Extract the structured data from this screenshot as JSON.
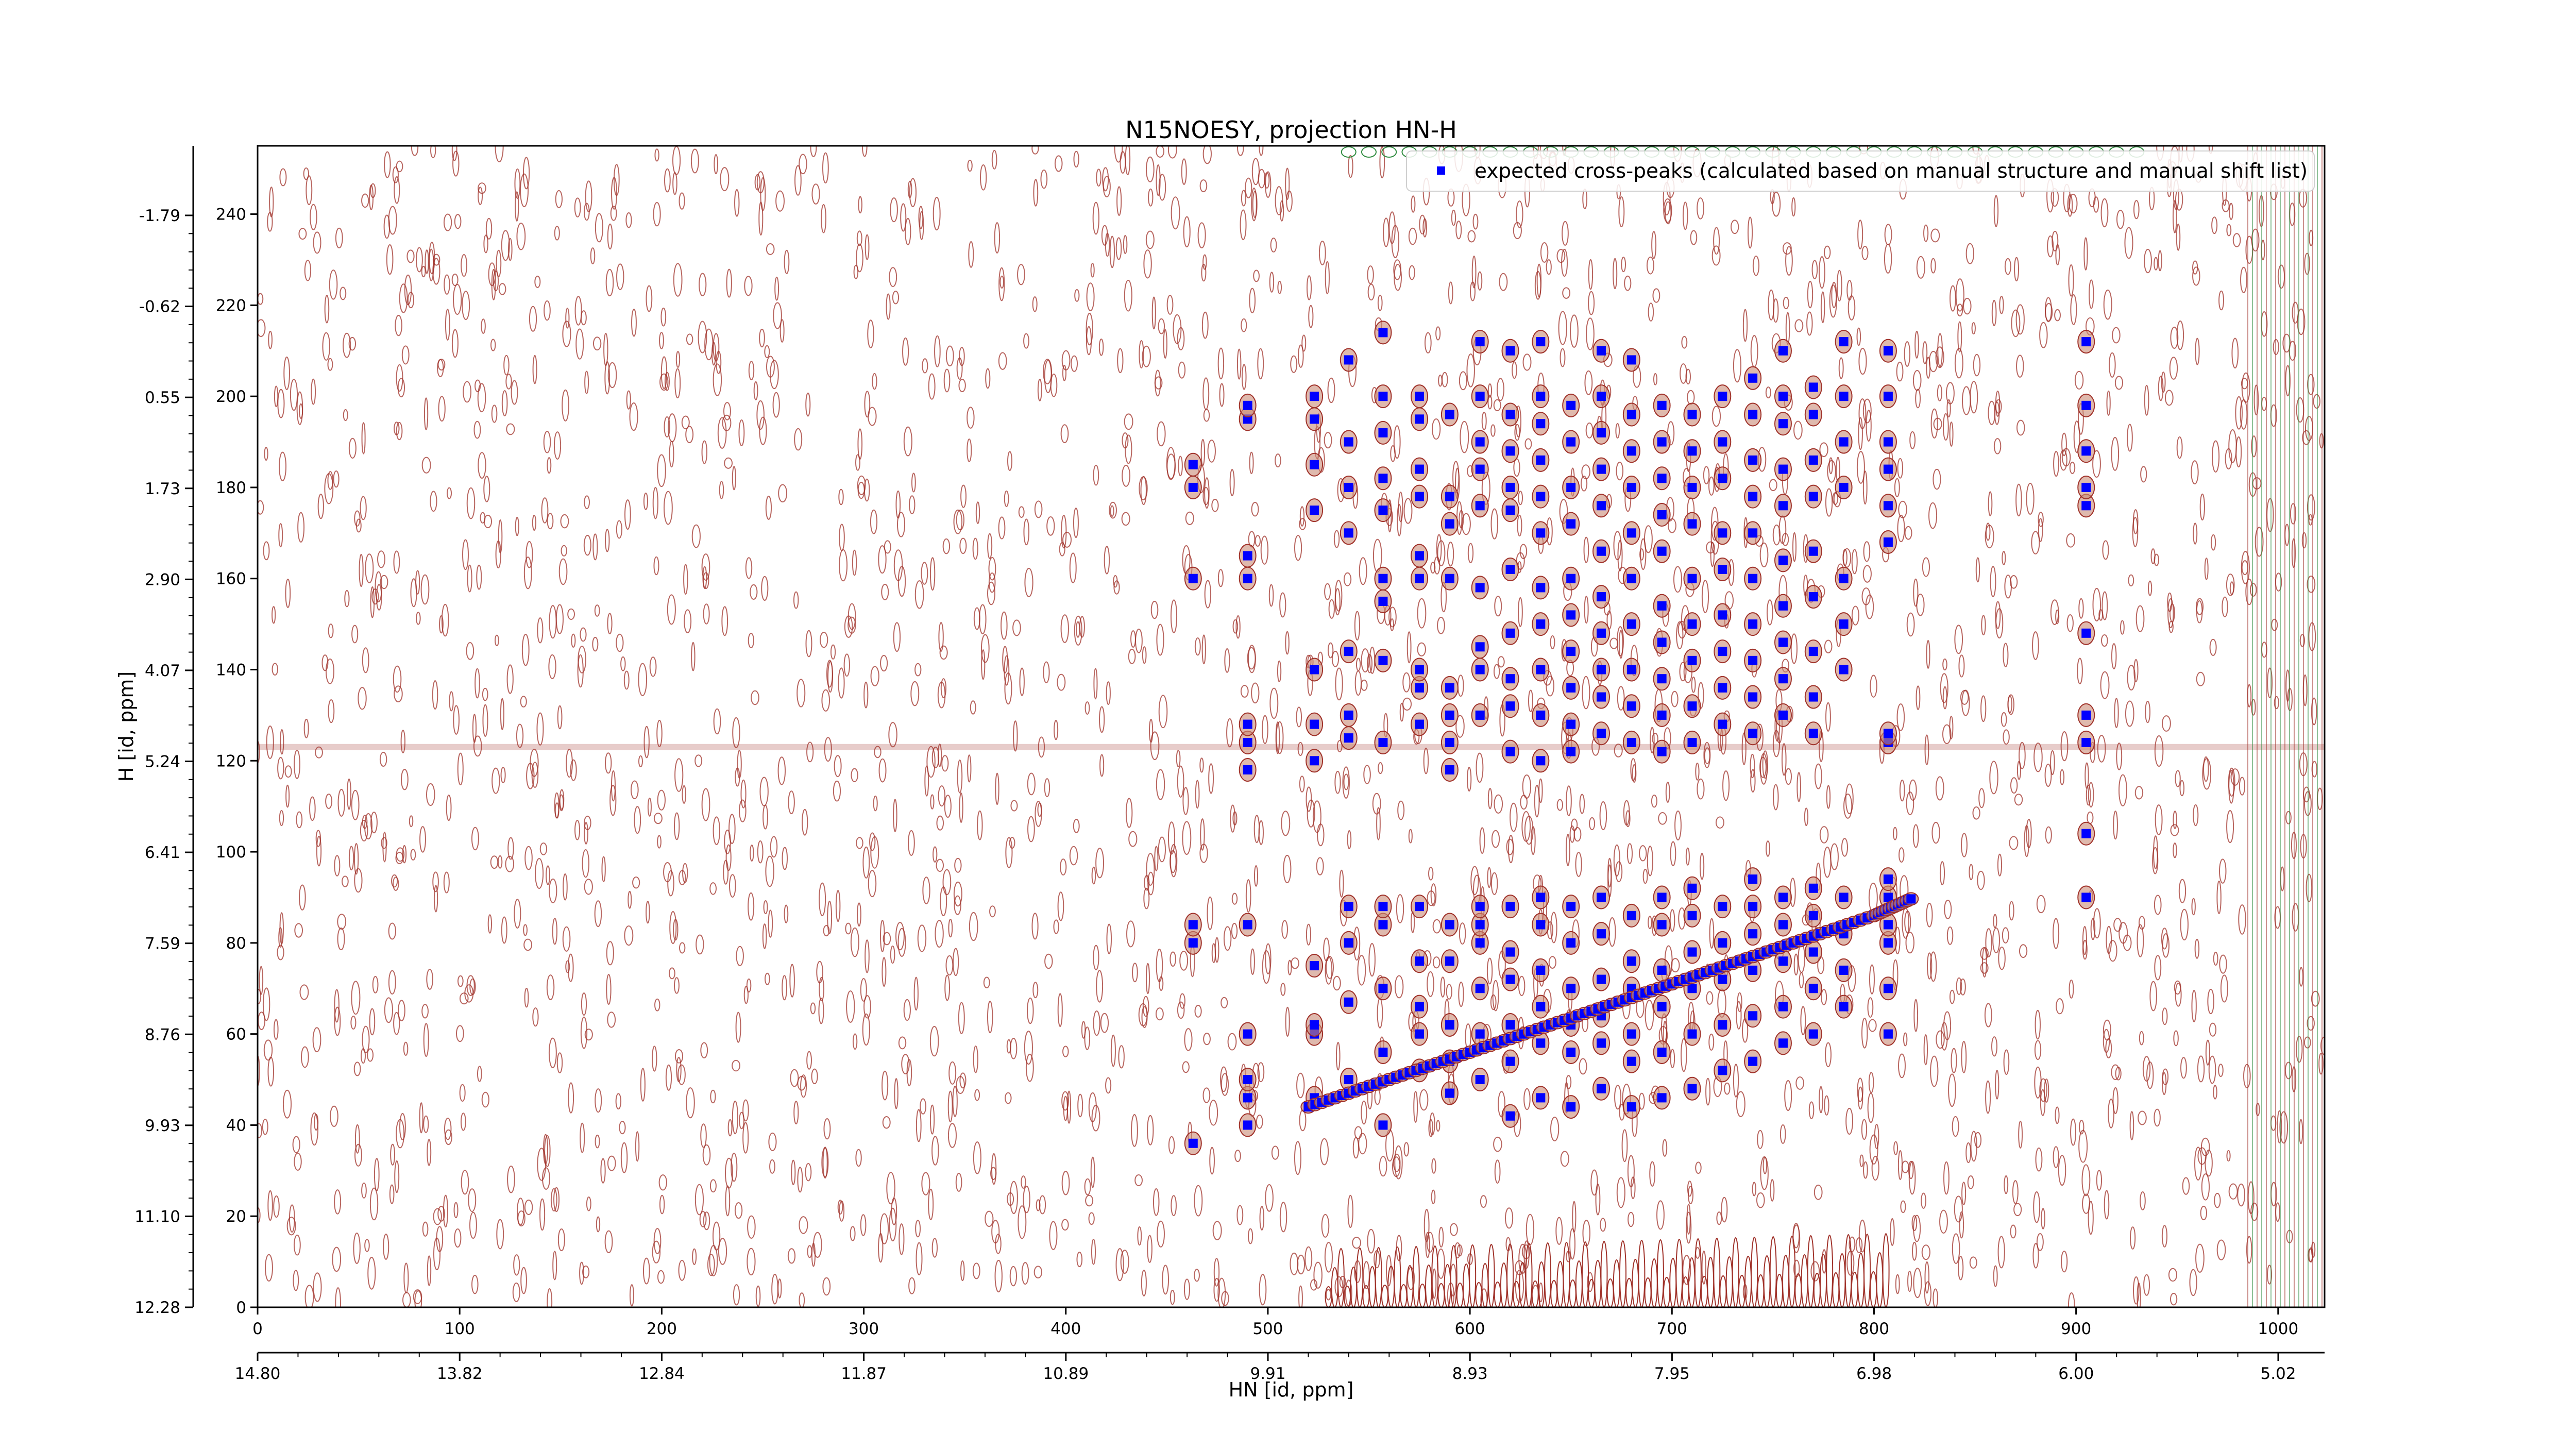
{
  "chart_data": {
    "type": "scatter",
    "title": "N15NOESY, projection HN-H",
    "xlabel_bottom": "HN [id, ppm]",
    "ylabel_left": "H [id, ppm]",
    "x_index": {
      "ticks": [
        0,
        100,
        200,
        300,
        400,
        500,
        600,
        700,
        800,
        900,
        1000
      ],
      "range": [
        0,
        1023
      ]
    },
    "y_index": {
      "ticks": [
        0,
        20,
        40,
        60,
        80,
        100,
        120,
        140,
        160,
        180,
        200,
        220,
        240
      ],
      "range": [
        0,
        255
      ]
    },
    "x_ppm_ticks": [
      {
        "index": 0,
        "label": "14.80"
      },
      {
        "index": 80,
        "label": "13.82"
      },
      {
        "index": 160,
        "label": "12.84"
      },
      {
        "index": 240,
        "label": "11.87"
      },
      {
        "index": 320,
        "label": "10.89"
      },
      {
        "index": 400,
        "label": "9.91"
      },
      {
        "index": 480,
        "label": "8.93"
      },
      {
        "index": 560,
        "label": "7.95"
      },
      {
        "index": 640,
        "label": "6.98"
      },
      {
        "index": 720,
        "label": "6.00"
      },
      {
        "index": 800,
        "label": "5.02"
      }
    ],
    "y_ppm_ticks": [
      {
        "index": 0,
        "label": "12.28"
      },
      {
        "index": 21,
        "label": "11.10"
      },
      {
        "index": 42,
        "label": "9.93"
      },
      {
        "index": 63,
        "label": "8.76"
      },
      {
        "index": 84,
        "label": "7.59"
      },
      {
        "index": 105,
        "label": "6.41"
      },
      {
        "index": 126,
        "label": "5.24"
      },
      {
        "index": 147,
        "label": "4.07"
      },
      {
        "index": 168,
        "label": "2.90"
      },
      {
        "index": 189,
        "label": "1.73"
      },
      {
        "index": 210,
        "label": "0.55"
      },
      {
        "index": 231,
        "label": "-0.62"
      },
      {
        "index": 252,
        "label": "-1.79"
      }
    ],
    "legend": {
      "position": "top-right",
      "entries": [
        "expected cross-peaks (calculated based on manual structure and manual shift list)"
      ]
    },
    "colors": {
      "peaks": "#0000ff",
      "contour_positive": "#a0322a",
      "contour_negative": "#2e8b3e",
      "frame": "#000000"
    },
    "series": [
      {
        "name": "expected cross-peaks (calculated based on manual structure and manual shift list)",
        "columns": [
          {
            "x": 463,
            "y": [
              36,
              80,
              84,
              160,
              180,
              185
            ]
          },
          {
            "x": 490,
            "y": [
              40,
              46,
              50,
              60,
              84,
              118,
              124,
              128,
              160,
              165,
              195,
              198
            ]
          },
          {
            "x": 523,
            "y": [
              46,
              60,
              62,
              75,
              120,
              128,
              140,
              175,
              185,
              195,
              200
            ]
          },
          {
            "x": 540,
            "y": [
              50,
              67,
              80,
              88,
              125,
              130,
              144,
              170,
              180,
              190,
              208
            ]
          },
          {
            "x": 557,
            "y": [
              40,
              56,
              70,
              84,
              88,
              124,
              142,
              155,
              160,
              175,
              182,
              192,
              200,
              214
            ]
          },
          {
            "x": 575,
            "y": [
              52,
              60,
              66,
              76,
              88,
              128,
              136,
              140,
              160,
              165,
              178,
              184,
              195,
              200
            ]
          },
          {
            "x": 590,
            "y": [
              47,
              54,
              62,
              76,
              84,
              118,
              124,
              130,
              136,
              160,
              172,
              178,
              196
            ]
          },
          {
            "x": 605,
            "y": [
              50,
              60,
              70,
              80,
              84,
              88,
              130,
              140,
              145,
              158,
              176,
              184,
              190,
              200,
              212
            ]
          },
          {
            "x": 620,
            "y": [
              42,
              54,
              62,
              72,
              78,
              88,
              122,
              132,
              138,
              148,
              162,
              175,
              180,
              188,
              196,
              210
            ]
          },
          {
            "x": 635,
            "y": [
              46,
              58,
              66,
              74,
              84,
              90,
              120,
              130,
              140,
              150,
              158,
              170,
              178,
              186,
              194,
              200,
              212
            ]
          },
          {
            "x": 650,
            "y": [
              44,
              56,
              62,
              70,
              80,
              88,
              122,
              128,
              136,
              144,
              152,
              160,
              172,
              180,
              190,
              198
            ]
          },
          {
            "x": 665,
            "y": [
              48,
              58,
              64,
              72,
              82,
              90,
              126,
              134,
              140,
              148,
              156,
              166,
              176,
              184,
              192,
              200,
              210
            ]
          },
          {
            "x": 680,
            "y": [
              44,
              54,
              60,
              70,
              76,
              86,
              124,
              132,
              140,
              150,
              160,
              170,
              180,
              188,
              196,
              208
            ]
          },
          {
            "x": 695,
            "y": [
              46,
              56,
              66,
              74,
              84,
              90,
              122,
              130,
              138,
              146,
              154,
              166,
              174,
              182,
              190,
              198
            ]
          },
          {
            "x": 710,
            "y": [
              48,
              60,
              70,
              78,
              86,
              92,
              124,
              132,
              142,
              150,
              160,
              172,
              180,
              188,
              196
            ]
          },
          {
            "x": 725,
            "y": [
              52,
              62,
              72,
              80,
              88,
              128,
              136,
              144,
              152,
              162,
              170,
              182,
              190,
              200
            ]
          },
          {
            "x": 740,
            "y": [
              54,
              64,
              74,
              82,
              88,
              94,
              126,
              134,
              142,
              150,
              160,
              170,
              178,
              186,
              196,
              204
            ]
          },
          {
            "x": 755,
            "y": [
              58,
              66,
              76,
              84,
              90,
              130,
              138,
              146,
              154,
              164,
              176,
              184,
              194,
              200,
              210
            ]
          },
          {
            "x": 770,
            "y": [
              60,
              70,
              78,
              86,
              92,
              126,
              134,
              144,
              156,
              166,
              178,
              186,
              196,
              202
            ]
          },
          {
            "x": 785,
            "y": [
              66,
              74,
              82,
              90,
              140,
              150,
              160,
              180,
              190,
              200,
              212
            ]
          },
          {
            "x": 807,
            "y": [
              60,
              70,
              80,
              84,
              90,
              94,
              124,
              126,
              168,
              176,
              184,
              190,
              200,
              210
            ]
          },
          {
            "x": 905,
            "y": [
              90,
              104,
              124,
              130,
              148,
              176,
              180,
              188,
              198,
              212
            ]
          }
        ],
        "diagonal": {
          "x": [
            520,
            560,
            600,
            640,
            680,
            720,
            760,
            800,
            820
          ],
          "y": [
            44,
            50,
            56,
            62,
            68,
            74,
            80,
            86,
            90
          ]
        }
      }
    ]
  }
}
